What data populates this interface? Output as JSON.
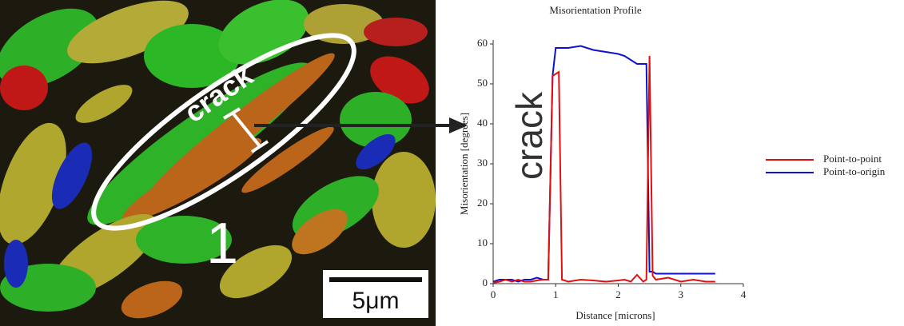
{
  "micrograph": {
    "crack_label": "crack",
    "grain_label": "1",
    "scale_bar": "5μm"
  },
  "chart_data": {
    "type": "line",
    "title": "Misorientation Profile",
    "x_label": "Distance [microns]",
    "y_label": "Misorientation [degrees]",
    "annotations": [
      "crack"
    ],
    "x": [
      0,
      0.1,
      0.2,
      0.3,
      0.4,
      0.5,
      0.6,
      0.7,
      0.8,
      0.88,
      0.95,
      1.0,
      1.05,
      1.1,
      1.2,
      1.4,
      1.6,
      1.8,
      2.0,
      2.1,
      2.2,
      2.3,
      2.4,
      2.45,
      2.5,
      2.55,
      2.6,
      2.8,
      3.0,
      3.2,
      3.4,
      3.55
    ],
    "series": [
      {
        "name": "Point-to-point",
        "color": "#e01010",
        "values": [
          0.2,
          0.5,
          1,
          0.5,
          1,
          0.5,
          0.5,
          0.8,
          1,
          1,
          52,
          52.5,
          53,
          1,
          0.5,
          1,
          0.8,
          0.5,
          0.8,
          1,
          0.5,
          2.2,
          0.5,
          1,
          57,
          2,
          1,
          1.5,
          0.5,
          1,
          0.5,
          0.5
        ]
      },
      {
        "name": "Point-to-origin",
        "color": "#1010d0",
        "values": [
          0.5,
          1,
          1,
          1,
          0.5,
          1,
          1,
          1.5,
          1,
          1,
          52,
          59,
          59,
          59,
          59,
          59.5,
          58.5,
          58,
          57.5,
          57,
          56,
          55,
          55,
          55,
          3,
          3,
          2.5,
          2.5,
          2.5,
          2.5,
          2.5,
          2.5
        ]
      }
    ],
    "xlim": [
      0,
      4
    ],
    "xticks": [
      0,
      1,
      2,
      3,
      4
    ],
    "ylim": [
      0,
      60
    ],
    "yticks": [
      0,
      10,
      20,
      30,
      40,
      50,
      60
    ],
    "legend": "right"
  }
}
